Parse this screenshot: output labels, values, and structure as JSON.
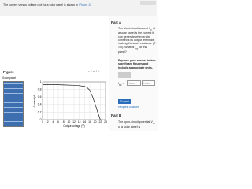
{
  "header": {
    "intro": "The current versus voltage plot for a solar panel is shown in ",
    "link": "(Figure 1)",
    "end": "."
  },
  "figure": {
    "label": "Figure",
    "pager": "1 of 1",
    "prev": "<",
    "next": ">",
    "panel_label": "Solar panel"
  },
  "chart_data": {
    "type": "line",
    "xlabel": "Output voltage (V)",
    "ylabel": "Current (A)",
    "x": [
      0,
      4,
      8,
      12,
      14,
      16,
      17,
      18,
      19,
      20,
      21,
      22
    ],
    "series": [
      {
        "color": "#1a1a1a",
        "values": [
          0.93,
          0.93,
          0.92,
          0.91,
          0.9,
          0.88,
          0.85,
          0.78,
          0.62,
          0.42,
          0.2,
          0
        ]
      }
    ],
    "xlim": [
      0,
      24
    ],
    "xticks": [
      0,
      2,
      4,
      6,
      8,
      10,
      12,
      14,
      16,
      18,
      20,
      22,
      24
    ],
    "ylim": [
      0,
      1
    ],
    "yticks": [
      0,
      0.2,
      0.4,
      0.6,
      0.8,
      1
    ],
    "grid": true
  },
  "part_a": {
    "title": "Part A",
    "t1": "The short-circuit current ",
    "sym": "I",
    "sub": "sc",
    "t2": " of a solar panel is the current it can generate when a wire connects its output terminals, making the load resistance (",
    "r": "R",
    "t3": " = 0). What is ",
    "t4": " for this panel?",
    "instructions": "Express your answer in two significant figures and include appropriate units.",
    "eq": "=",
    "value_placeholder": "Value",
    "units_placeholder": "Units",
    "submit": "Submit",
    "request": "Request Answer"
  },
  "part_b": {
    "title": "Part B",
    "t1": "The open-circuit potential ",
    "sym": "V",
    "sub": "oc",
    "t2": " of a solar panel is"
  }
}
